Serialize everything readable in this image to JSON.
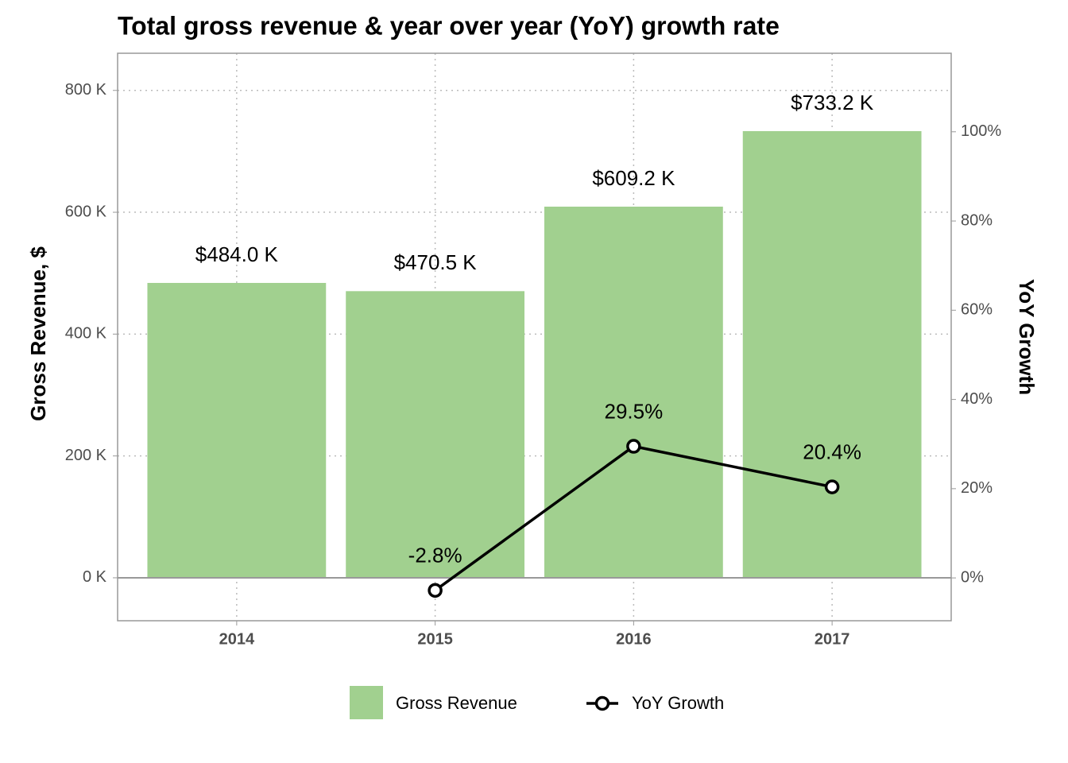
{
  "chart_data": {
    "type": "bar",
    "title": "Total gross revenue & year over year (YoY) growth rate",
    "ylabel": "Gross Revenue, $",
    "y2label": "YoY Growth",
    "categories": [
      "2014",
      "2015",
      "2016",
      "2017"
    ],
    "series": [
      {
        "name": "Gross Revenue",
        "type": "bar",
        "color": "#a1d08f",
        "values": [
          484.0,
          470.5,
          609.2,
          733.2
        ],
        "value_labels": [
          "$484.0 K",
          "$470.5 K",
          "$609.2 K",
          "$733.2 K"
        ]
      },
      {
        "name": "YoY Growth",
        "type": "line",
        "axis": "y2",
        "color": "#000000",
        "values": [
          null,
          -2.8,
          29.5,
          20.4
        ],
        "value_labels": [
          null,
          "-2.8%",
          "29.5%",
          "20.4%"
        ]
      }
    ],
    "ylim": [
      -70.5,
      861
    ],
    "yticks": [
      {
        "value": 0,
        "label": "0 K"
      },
      {
        "value": 200,
        "label": "200 K"
      },
      {
        "value": 400,
        "label": "400 K"
      },
      {
        "value": 600,
        "label": "600 K"
      },
      {
        "value": 800,
        "label": "800 K"
      }
    ],
    "y2lim": [
      -9.6,
      117.6
    ],
    "y2ticks": [
      {
        "value": 0,
        "label": "0%"
      },
      {
        "value": 20,
        "label": "20%"
      },
      {
        "value": 40,
        "label": "40%"
      },
      {
        "value": 60,
        "label": "60%"
      },
      {
        "value": 80,
        "label": "80%"
      },
      {
        "value": 100,
        "label": "100%"
      }
    ],
    "grid": true,
    "legend": "bottom"
  }
}
